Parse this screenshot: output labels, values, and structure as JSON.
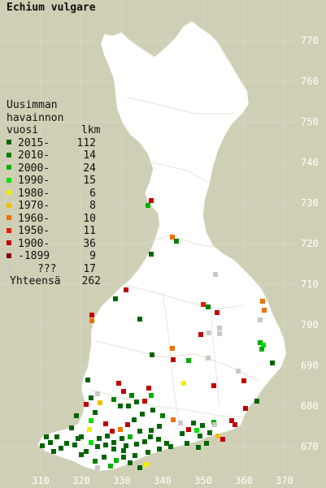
{
  "title": "Echium vulgare",
  "legend": {
    "heading": [
      "Uusimman",
      "havainnon"
    ],
    "col_year": "vuosi",
    "col_count": "lkm",
    "rows": [
      {
        "label": "2015-",
        "count": "112",
        "color": "#006400"
      },
      {
        "label": "2010-",
        "count": "14",
        "color": "#008000"
      },
      {
        "label": "2000-",
        "count": "24",
        "color": "#00b000"
      },
      {
        "label": "1990-",
        "count": "15",
        "color": "#00e000"
      },
      {
        "label": "1980-",
        "count": "6",
        "color": "#f0f000"
      },
      {
        "label": "1970-",
        "count": "8",
        "color": "#f0c000"
      },
      {
        "label": "1960-",
        "count": "10",
        "color": "#f07000"
      },
      {
        "label": "1950-",
        "count": "11",
        "color": "#e02000"
      },
      {
        "label": "1900-",
        "count": "36",
        "color": "#c00000"
      },
      {
        "label": "-1899",
        "count": "9",
        "color": "#800000"
      },
      {
        "label": "???",
        "count": "17",
        "color": "#c8c8c8"
      }
    ],
    "total_label": "Yhteensä",
    "total_count": "262"
  },
  "axis": {
    "x_ticks": [
      "310",
      "320",
      "330",
      "340",
      "350",
      "360",
      "370"
    ],
    "y_ticks": [
      "770",
      "760",
      "750",
      "740",
      "730",
      "720",
      "710",
      "700",
      "690",
      "680",
      "670"
    ]
  },
  "colors": {
    "background": "#cfcfb5",
    "land": "#ffffff",
    "grid": "#e0e0d0",
    "tick_text": "#ffffff"
  }
}
